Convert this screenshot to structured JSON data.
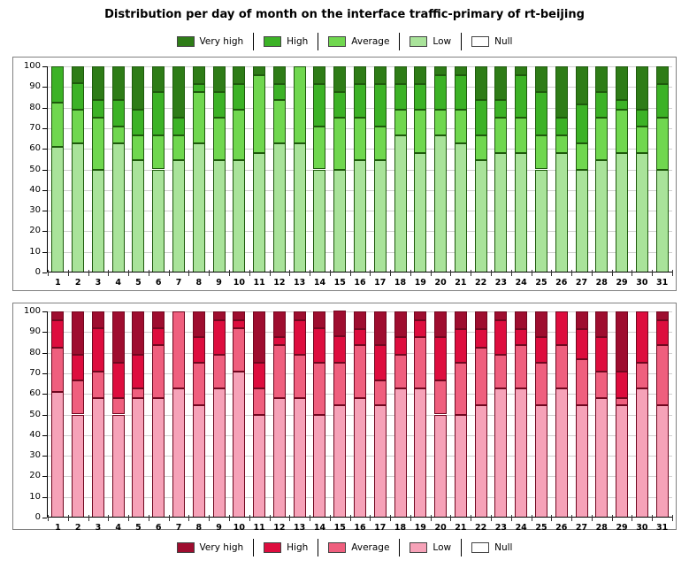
{
  "title": "Distribution per day of month on the interface traffic-primary of rt-beijing",
  "legend": [
    "Very high",
    "High",
    "Average",
    "Low",
    "Null"
  ],
  "axis": {
    "days": [
      1,
      2,
      3,
      4,
      5,
      6,
      7,
      8,
      9,
      10,
      11,
      12,
      13,
      14,
      15,
      16,
      17,
      18,
      19,
      20,
      21,
      22,
      23,
      24,
      25,
      26,
      27,
      28,
      29,
      30,
      31
    ],
    "yticks": [
      0,
      10,
      20,
      30,
      40,
      50,
      60,
      70,
      80,
      90,
      100
    ]
  },
  "charts": [
    {
      "name": "traffic-primary-green",
      "palette": {
        "Very high": "#2e7c17",
        "High": "#3cb226",
        "Average": "#70d74f",
        "Low": "#a9e39a",
        "Null": "#ffffff"
      },
      "segment_border": "#1e5a0c"
    },
    {
      "name": "traffic-primary-red",
      "palette": {
        "Very high": "#9e0d2f",
        "High": "#dd0d3e",
        "Average": "#ef5f7e",
        "Low": "#f6a2b8",
        "Null": "#ffffff"
      },
      "segment_border": "#70071f"
    }
  ],
  "chart_data": [
    {
      "type": "bar",
      "stacked": true,
      "title": "Distribution per day of month on the interface traffic-primary of rt-beijing",
      "categories": [
        1,
        2,
        3,
        4,
        5,
        6,
        7,
        8,
        9,
        10,
        11,
        12,
        13,
        14,
        15,
        16,
        17,
        18,
        19,
        20,
        21,
        22,
        23,
        24,
        25,
        26,
        27,
        28,
        29,
        30,
        31
      ],
      "stack_order": [
        "Low",
        "Average",
        "High",
        "Very high",
        "Null"
      ],
      "series": [
        {
          "name": "Low",
          "values": [
            61,
            62.5,
            50,
            62.5,
            54.5,
            50,
            54.5,
            62.5,
            54.5,
            54.5,
            58,
            62.5,
            62.5,
            50,
            50,
            54.5,
            54.5,
            66.5,
            58,
            66.5,
            62.5,
            54.5,
            58,
            58,
            50,
            58,
            50,
            54.5,
            58,
            58,
            50
          ]
        },
        {
          "name": "Average",
          "values": [
            21.5,
            16.5,
            25,
            8.5,
            12,
            16.5,
            12,
            25,
            20.5,
            24.5,
            37.5,
            21,
            37.5,
            21,
            25,
            20.5,
            16.5,
            12.5,
            21,
            12.5,
            16.5,
            12,
            17,
            17,
            16.5,
            8.5,
            12.5,
            20.5,
            21,
            13,
            25
          ]
        },
        {
          "name": "High",
          "values": [
            17.5,
            13,
            8.5,
            12.5,
            12.5,
            21,
            8.5,
            4,
            12.5,
            12.5,
            0,
            8,
            0,
            20.5,
            12.5,
            16.5,
            20.5,
            12.5,
            12.5,
            16.5,
            16.5,
            17,
            8.5,
            20.5,
            21,
            8.5,
            19,
            12.5,
            4.5,
            8,
            16.5
          ]
        },
        {
          "name": "Very high",
          "values": [
            0,
            8,
            16.5,
            16.5,
            21,
            12.5,
            25,
            8.5,
            12.5,
            8.5,
            4.5,
            8.5,
            0,
            8.5,
            12.5,
            8.5,
            8.5,
            8.5,
            8.5,
            4.5,
            4.5,
            16.5,
            16.5,
            4.5,
            12.5,
            25,
            18.5,
            12.5,
            16.5,
            21,
            8.5
          ]
        },
        {
          "name": "Null",
          "values": [
            0,
            0,
            0,
            0,
            0,
            0,
            0,
            0,
            0,
            0,
            0,
            0,
            0,
            0,
            0,
            0,
            0,
            0,
            0,
            0,
            0,
            0,
            0,
            0,
            0,
            0,
            0,
            0,
            0,
            0,
            0
          ]
        }
      ],
      "ylim": [
        0,
        100
      ],
      "xlabel": "",
      "ylabel": "",
      "grid": true,
      "legend_position": "top"
    },
    {
      "type": "bar",
      "stacked": true,
      "title": "Distribution per day of month on the interface traffic-primary of rt-beijing",
      "categories": [
        1,
        2,
        3,
        4,
        5,
        6,
        7,
        8,
        9,
        10,
        11,
        12,
        13,
        14,
        15,
        16,
        17,
        18,
        19,
        20,
        21,
        22,
        23,
        24,
        25,
        26,
        27,
        28,
        29,
        30,
        31
      ],
      "stack_order": [
        "Low",
        "Average",
        "High",
        "Very high",
        "Null"
      ],
      "series": [
        {
          "name": "Low",
          "values": [
            61,
            50,
            58,
            50,
            58,
            58,
            62.5,
            54.5,
            62.5,
            71,
            50,
            58,
            58,
            50,
            54.5,
            58,
            54.5,
            62.5,
            62.5,
            50,
            50,
            54.5,
            62.5,
            62.5,
            54.5,
            62.5,
            54.5,
            58,
            54.5,
            62.5,
            54.5
          ]
        },
        {
          "name": "Average",
          "values": [
            21.5,
            16.5,
            13,
            8,
            4.5,
            25.5,
            37.5,
            20.5,
            16.5,
            21,
            12.5,
            25.5,
            21,
            25,
            20.5,
            25.5,
            12,
            16.5,
            25,
            16.5,
            25,
            28,
            16.5,
            21,
            20.5,
            21,
            22.5,
            13,
            3.5,
            12.5,
            29
          ]
        },
        {
          "name": "High",
          "values": [
            13,
            12.5,
            21,
            17,
            16.5,
            8.5,
            0,
            12.5,
            16.5,
            3.5,
            12.5,
            4,
            16.5,
            17,
            13,
            8,
            17,
            8.5,
            8,
            21,
            16.5,
            9,
            16.5,
            8,
            12.5,
            16.5,
            14.5,
            16.5,
            13,
            25,
            12
          ]
        },
        {
          "name": "Very high",
          "values": [
            4.5,
            21,
            8,
            25,
            21,
            8,
            0,
            12.5,
            4.5,
            4.5,
            25,
            12.5,
            4.5,
            8,
            12.5,
            8.5,
            16.5,
            12.5,
            4.5,
            12.5,
            8.5,
            8.5,
            4.5,
            8.5,
            12.5,
            0,
            8.5,
            12.5,
            29,
            0,
            4.5
          ]
        },
        {
          "name": "Null",
          "values": [
            0,
            0,
            0,
            0,
            0,
            0,
            0,
            0,
            0,
            0,
            0,
            0,
            0,
            0,
            0,
            0,
            0,
            0,
            0,
            0,
            0,
            0,
            0,
            0,
            0,
            0,
            0,
            0,
            0,
            0,
            0
          ]
        }
      ],
      "ylim": [
        0,
        100
      ],
      "xlabel": "",
      "ylabel": "",
      "grid": true,
      "legend_position": "bottom"
    }
  ]
}
